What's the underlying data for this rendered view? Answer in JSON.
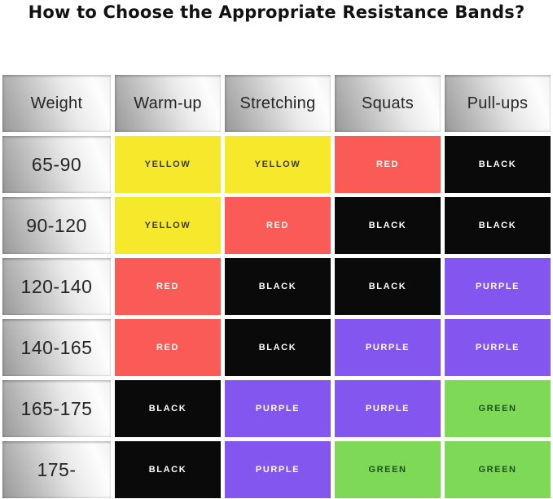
{
  "title": "How to Choose the Appropriate Resistance Bands?",
  "palette": {
    "YELLOW": {
      "bg": "#F6E92C",
      "text": "#3E3E30"
    },
    "RED": {
      "bg": "#FA5B57",
      "text": "#FFFFFF"
    },
    "BLACK": {
      "bg": "#0A0A0A",
      "text": "#FFFFFF"
    },
    "PURPLE": {
      "bg": "#8456F0",
      "text": "#FFFFFF"
    },
    "GREEN": {
      "bg": "#7ED957",
      "text": "#1B5220"
    }
  },
  "chart_data": {
    "type": "table",
    "title": "How to Choose the Appropriate Resistance Bands?",
    "columns": [
      "Weight",
      "Warm-up",
      "Stretching",
      "Squats",
      "Pull-ups"
    ],
    "rows": [
      {
        "weight": "65-90",
        "bands": [
          "YELLOW",
          "YELLOW",
          "RED",
          "BLACK"
        ]
      },
      {
        "weight": "90-120",
        "bands": [
          "YELLOW",
          "RED",
          "BLACK",
          "BLACK"
        ]
      },
      {
        "weight": "120-140",
        "bands": [
          "RED",
          "BLACK",
          "BLACK",
          "PURPLE"
        ]
      },
      {
        "weight": "140-165",
        "bands": [
          "RED",
          "BLACK",
          "PURPLE",
          "PURPLE"
        ]
      },
      {
        "weight": "165-175",
        "bands": [
          "BLACK",
          "PURPLE",
          "PURPLE",
          "GREEN"
        ]
      },
      {
        "weight": "175-",
        "bands": [
          "BLACK",
          "PURPLE",
          "GREEN",
          "GREEN"
        ]
      }
    ],
    "layout": {
      "grid": "off",
      "cell_gap": true,
      "header_style": "metallic-gradient"
    }
  }
}
